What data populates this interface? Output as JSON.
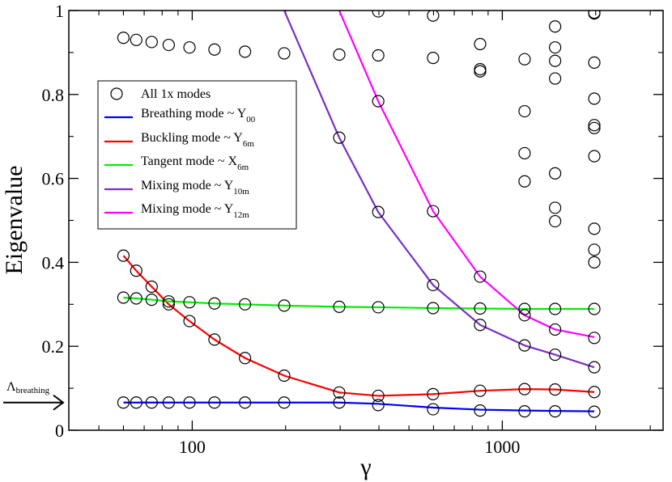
{
  "chart_data": {
    "type": "scatter",
    "xlabel": "γ",
    "ylabel": "Eigenvalue",
    "xscale": "log",
    "xlim": [
      40,
      3300
    ],
    "ylim": [
      0,
      1
    ],
    "x_ticks": [
      100,
      1000
    ],
    "x_tick_labels": [
      "100",
      "1000"
    ],
    "y_ticks": [
      0,
      0.2,
      0.4,
      0.6,
      0.8,
      1
    ],
    "y_tick_labels": [
      "0",
      "0.2",
      "0.4",
      "0.6",
      "0.8",
      "1"
    ],
    "legend_position": "upper-left-center",
    "annotation": {
      "label_main": "Λ",
      "label_sub": "breathing",
      "value": 0.066
    },
    "scatter_series": {
      "name": "All 1x modes",
      "points": [
        [
          60,
          0.935
        ],
        [
          66,
          0.93
        ],
        [
          74,
          0.925
        ],
        [
          84,
          0.918
        ],
        [
          98,
          0.912
        ],
        [
          118,
          0.907
        ],
        [
          148,
          0.902
        ],
        [
          198,
          0.898
        ],
        [
          298,
          0.895
        ],
        [
          398,
          0.893
        ],
        [
          398,
          0.998
        ],
        [
          598,
          0.887
        ],
        [
          598,
          0.988
        ],
        [
          848,
          0.92
        ],
        [
          848,
          0.86
        ],
        [
          848,
          0.855
        ],
        [
          1180,
          0.884
        ],
        [
          1480,
          0.962
        ],
        [
          1480,
          0.912
        ],
        [
          1480,
          0.88
        ],
        [
          1480,
          0.838
        ],
        [
          1980,
          0.995
        ],
        [
          1980,
          0.993
        ],
        [
          1980,
          0.876
        ],
        [
          398,
          0.784
        ],
        [
          1180,
          0.76
        ],
        [
          1180,
          0.66
        ],
        [
          1180,
          0.593
        ],
        [
          1480,
          0.612
        ],
        [
          1480,
          0.53
        ],
        [
          1480,
          0.498
        ],
        [
          1980,
          0.79
        ],
        [
          1980,
          0.727
        ],
        [
          1980,
          0.72
        ],
        [
          1980,
          0.653
        ],
        [
          1980,
          0.48
        ],
        [
          1980,
          0.43
        ],
        [
          1980,
          0.4
        ],
        [
          298,
          0.697
        ],
        [
          398,
          0.52
        ],
        [
          598,
          0.522
        ],
        [
          60,
          0.416
        ],
        [
          66,
          0.38
        ],
        [
          74,
          0.342
        ],
        [
          84,
          0.3
        ],
        [
          98,
          0.26
        ],
        [
          118,
          0.216
        ],
        [
          148,
          0.172
        ],
        [
          198,
          0.13
        ],
        [
          298,
          0.09
        ],
        [
          398,
          0.082
        ],
        [
          598,
          0.086
        ],
        [
          848,
          0.094
        ],
        [
          1180,
          0.098
        ],
        [
          1480,
          0.097
        ],
        [
          1980,
          0.091
        ],
        [
          60,
          0.316
        ],
        [
          66,
          0.314
        ],
        [
          74,
          0.311
        ],
        [
          84,
          0.307
        ],
        [
          98,
          0.305
        ],
        [
          118,
          0.302
        ],
        [
          148,
          0.3
        ],
        [
          198,
          0.297
        ],
        [
          298,
          0.294
        ],
        [
          398,
          0.293
        ],
        [
          598,
          0.291
        ],
        [
          848,
          0.29
        ],
        [
          1180,
          0.289
        ],
        [
          1480,
          0.289
        ],
        [
          1980,
          0.289
        ],
        [
          60,
          0.066
        ],
        [
          66,
          0.066
        ],
        [
          74,
          0.066
        ],
        [
          84,
          0.066
        ],
        [
          98,
          0.066
        ],
        [
          118,
          0.066
        ],
        [
          148,
          0.066
        ],
        [
          198,
          0.066
        ],
        [
          298,
          0.066
        ],
        [
          398,
          0.06
        ],
        [
          598,
          0.05
        ],
        [
          848,
          0.047
        ],
        [
          1180,
          0.045
        ],
        [
          1480,
          0.045
        ],
        [
          1980,
          0.044
        ],
        [
          598,
          0.346
        ],
        [
          848,
          0.366
        ],
        [
          848,
          0.251
        ],
        [
          1180,
          0.274
        ],
        [
          1180,
          0.202
        ],
        [
          1480,
          0.24
        ],
        [
          1480,
          0.18
        ],
        [
          1980,
          0.22
        ],
        [
          1980,
          0.15
        ]
      ]
    },
    "series": [
      {
        "name": "Breathing mode ~ Y",
        "subscript": "00",
        "color": "#0000ff",
        "points": [
          [
            60,
            0.066
          ],
          [
            98,
            0.066
          ],
          [
            148,
            0.066
          ],
          [
            198,
            0.066
          ],
          [
            298,
            0.066
          ],
          [
            398,
            0.063
          ],
          [
            598,
            0.054
          ],
          [
            848,
            0.049
          ],
          [
            1180,
            0.047
          ],
          [
            1480,
            0.046
          ],
          [
            1980,
            0.045
          ]
        ]
      },
      {
        "name": "Buckling mode ~ Y",
        "subscript": "6m",
        "color": "#ff0000",
        "points": [
          [
            60,
            0.416
          ],
          [
            66,
            0.38
          ],
          [
            74,
            0.342
          ],
          [
            84,
            0.3
          ],
          [
            98,
            0.26
          ],
          [
            118,
            0.216
          ],
          [
            148,
            0.172
          ],
          [
            198,
            0.13
          ],
          [
            298,
            0.09
          ],
          [
            398,
            0.082
          ],
          [
            598,
            0.086
          ],
          [
            848,
            0.094
          ],
          [
            1180,
            0.098
          ],
          [
            1480,
            0.097
          ],
          [
            1980,
            0.091
          ]
        ]
      },
      {
        "name": "Tangent mode ~ X",
        "subscript": "6m",
        "color": "#00ee00",
        "points": [
          [
            60,
            0.316
          ],
          [
            66,
            0.314
          ],
          [
            74,
            0.311
          ],
          [
            84,
            0.307
          ],
          [
            98,
            0.305
          ],
          [
            118,
            0.302
          ],
          [
            148,
            0.3
          ],
          [
            198,
            0.297
          ],
          [
            298,
            0.294
          ],
          [
            398,
            0.293
          ],
          [
            598,
            0.291
          ],
          [
            848,
            0.29
          ],
          [
            1180,
            0.289
          ],
          [
            1480,
            0.289
          ],
          [
            1980,
            0.289
          ]
        ]
      },
      {
        "name": "Mixing mode ~ Y",
        "subscript": "10m",
        "color": "#7b2fbe",
        "points": [
          [
            198,
            1.0
          ],
          [
            298,
            0.697
          ],
          [
            398,
            0.52
          ],
          [
            598,
            0.346
          ],
          [
            848,
            0.251
          ],
          [
            1180,
            0.202
          ],
          [
            1480,
            0.18
          ],
          [
            1980,
            0.15
          ]
        ]
      },
      {
        "name": "Mixing mode ~ Y",
        "subscript": "12m",
        "color": "#ff00ff",
        "points": [
          [
            298,
            1.0
          ],
          [
            398,
            0.784
          ],
          [
            598,
            0.522
          ],
          [
            848,
            0.366
          ],
          [
            1180,
            0.274
          ],
          [
            1480,
            0.24
          ],
          [
            1980,
            0.222
          ]
        ]
      }
    ]
  }
}
